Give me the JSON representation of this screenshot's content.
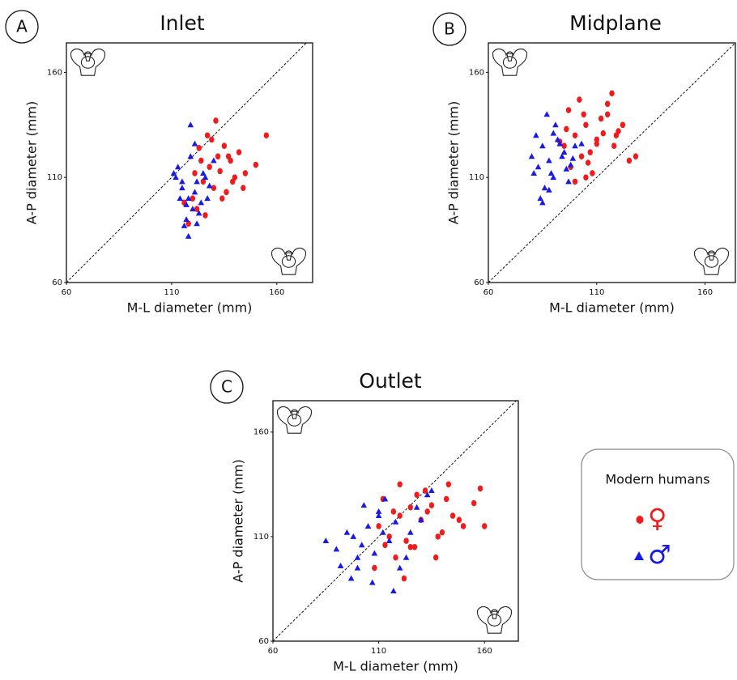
{
  "chart_data": [
    {
      "type": "scatter",
      "label": "A",
      "title": "Inlet",
      "x_label": "M-L diameter (mm)",
      "y_label": "A-P diameter (mm)",
      "xlim": [
        60,
        177
      ],
      "ylim": [
        60,
        174
      ],
      "xticks": [
        60,
        110,
        160
      ],
      "yticks": [
        60,
        110,
        160
      ],
      "series": [
        {
          "color": "#ee1c1c",
          "marker": "circle",
          "x": [
            128,
            132,
            125,
            120,
            138,
            135,
            140,
            130,
            122,
            118,
            145,
            142,
            127,
            133,
            136,
            124,
            129,
            150,
            155,
            116,
            131,
            126,
            139,
            134,
            121,
            144,
            137,
            123
          ],
          "values": [
            115,
            120,
            108,
            100,
            118,
            125,
            110,
            105,
            95,
            88,
            112,
            122,
            130,
            113,
            103,
            118,
            128,
            116,
            130,
            98,
            137,
            92,
            108,
            100,
            112,
            105,
            120,
            124
          ]
        },
        {
          "color": "#1a1ae6",
          "marker": "triangle",
          "x": [
            112,
            115,
            118,
            120,
            122,
            125,
            117,
            113,
            119,
            121,
            124,
            128,
            116,
            114,
            123,
            126,
            130,
            119,
            111,
            118,
            121,
            127,
            122,
            115,
            117
          ],
          "values": [
            110,
            105,
            100,
            95,
            108,
            112,
            90,
            115,
            120,
            103,
            98,
            106,
            87,
            100,
            93,
            110,
            118,
            135,
            112,
            82,
            126,
            100,
            88,
            108,
            97
          ]
        }
      ]
    },
    {
      "type": "scatter",
      "label": "B",
      "title": "Midplane",
      "x_label": "M-L diameter (mm)",
      "y_label": "A-P diameter (mm)",
      "xlim": [
        60,
        174
      ],
      "ylim": [
        60,
        174
      ],
      "xticks": [
        60,
        110,
        160
      ],
      "yticks": [
        60,
        110,
        160
      ],
      "series": [
        {
          "color": "#ee1c1c",
          "marker": "circle",
          "x": [
            95,
            100,
            105,
            110,
            115,
            120,
            98,
            103,
            108,
            112,
            118,
            125,
            97,
            102,
            107,
            113,
            117,
            122,
            128,
            100,
            105,
            110,
            96,
            104,
            115,
            93,
            119,
            106
          ],
          "values": [
            125,
            130,
            135,
            128,
            140,
            132,
            115,
            120,
            112,
            138,
            125,
            118,
            142,
            147,
            122,
            131,
            150,
            135,
            120,
            108,
            110,
            126,
            133,
            140,
            145,
            127,
            130,
            117
          ]
        },
        {
          "color": "#1a1ae6",
          "marker": "triangle",
          "x": [
            80,
            83,
            85,
            88,
            90,
            92,
            95,
            98,
            100,
            82,
            86,
            89,
            91,
            94,
            97,
            84,
            87,
            93,
            96,
            99,
            81,
            88,
            103,
            85,
            90
          ],
          "values": [
            120,
            115,
            125,
            118,
            110,
            128,
            122,
            116,
            125,
            130,
            105,
            112,
            135,
            120,
            108,
            100,
            140,
            126,
            114,
            119,
            112,
            104,
            126,
            98,
            131
          ]
        }
      ]
    },
    {
      "type": "scatter",
      "label": "C",
      "title": "Outlet",
      "x_label": "M-L diameter (mm)",
      "y_label": "A-P diameter (mm)",
      "xlim": [
        60,
        176
      ],
      "ylim": [
        60,
        175
      ],
      "xticks": [
        60,
        110,
        160
      ],
      "yticks": [
        60,
        110,
        160
      ],
      "legend_title": "Modern humans",
      "series": [
        {
          "name": "♀",
          "color": "#ee1c1c",
          "marker": "circle",
          "x": [
            110,
            115,
            120,
            125,
            130,
            135,
            140,
            145,
            150,
            112,
            118,
            123,
            128,
            133,
            138,
            143,
            148,
            155,
            160,
            108,
            117,
            122,
            127,
            132,
            137,
            142,
            125,
            120,
            113,
            158
          ],
          "values": [
            115,
            110,
            120,
            105,
            118,
            125,
            112,
            120,
            115,
            128,
            100,
            108,
            130,
            122,
            110,
            135,
            118,
            126,
            115,
            95,
            122,
            90,
            105,
            132,
            100,
            128,
            124,
            135,
            106,
            133
          ]
        },
        {
          "name": "♂",
          "color": "#1a1ae6",
          "marker": "triangle",
          "x": [
            85,
            90,
            95,
            100,
            105,
            110,
            115,
            120,
            125,
            130,
            92,
            98,
            103,
            108,
            113,
            118,
            123,
            128,
            133,
            97,
            102,
            107,
            112,
            117,
            135,
            100,
            110
          ],
          "values": [
            108,
            104,
            112,
            100,
            115,
            120,
            108,
            95,
            112,
            118,
            96,
            110,
            125,
            102,
            128,
            117,
            100,
            124,
            130,
            90,
            106,
            88,
            112,
            84,
            132,
            95,
            122
          ]
        }
      ]
    }
  ]
}
